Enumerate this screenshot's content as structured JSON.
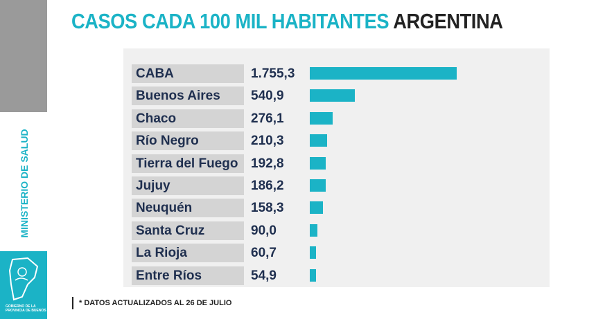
{
  "title_part1": "CASOS CADA 100 MIL HABITANTES",
  "title_part2": "ARGENTINA",
  "side_label": "MINISTERIO DE SALUD",
  "logo_text": "GOBIERNO DE LA PROVINCIA DE BUENOS",
  "footnote": "* DATOS ACTUALIZADOS AL 26 DE JULIO",
  "colors": {
    "accent": "#1bb3c6",
    "text": "#1f2f4f"
  },
  "chart_data": {
    "type": "bar",
    "orientation": "horizontal",
    "title": "CASOS CADA 100 MIL HABITANTES ARGENTINA",
    "categories": [
      "CABA",
      "Buenos Aires",
      "Chaco",
      "Río Negro",
      "Tierra del Fuego",
      "Jujuy",
      "Neuquén",
      "Santa Cruz",
      "La Rioja",
      "Entre Ríos"
    ],
    "labels": [
      "1.755,3",
      "540,9",
      "276,1",
      "210,3",
      "192,8",
      "186,2",
      "158,3",
      "90,0",
      "60,7",
      "54,9"
    ],
    "values": [
      1755.3,
      540.9,
      276.1,
      210.3,
      192.8,
      186.2,
      158.3,
      90.0,
      60.7,
      54.9
    ]
  }
}
